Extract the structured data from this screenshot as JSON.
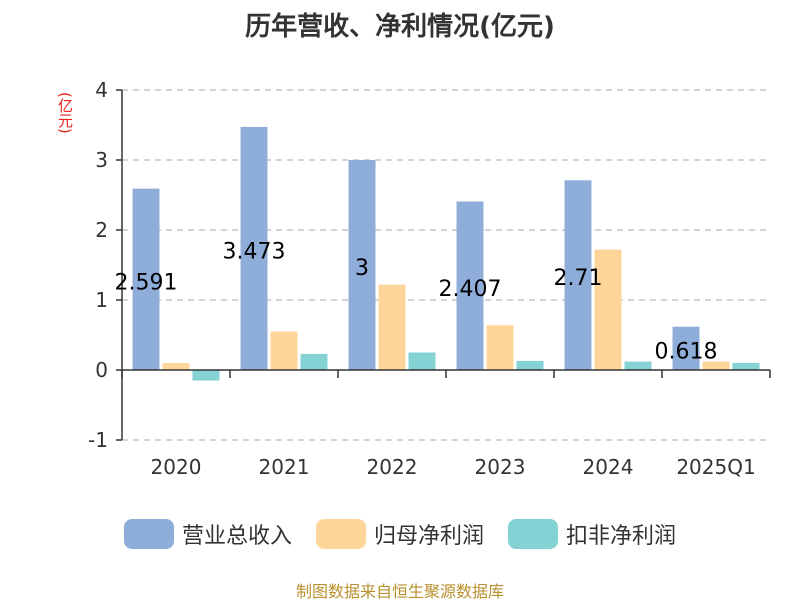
{
  "title": "历年营收、净利情况(亿元)",
  "unit_label": "(亿元)",
  "source": "制图数据来自恒生聚源数据库",
  "colors": {
    "revenue": "#8fadd9",
    "net_profit": "#ffd699",
    "non_recurring_profit": "#85d2d5",
    "grid": "#bbbbbb",
    "axis": "#333333",
    "unit": "#e8231c",
    "source": "#b8912e"
  },
  "chart_data": {
    "type": "bar",
    "categories": [
      "2020",
      "2021",
      "2022",
      "2023",
      "2024",
      "2025Q1"
    ],
    "series": [
      {
        "name": "营业总收入",
        "values": [
          2.591,
          3.473,
          3.0,
          2.407,
          2.71,
          0.618
        ]
      },
      {
        "name": "归母净利润",
        "values": [
          0.1,
          0.55,
          1.22,
          0.64,
          1.72,
          0.12
        ]
      },
      {
        "name": "扣非净利润",
        "values": [
          -0.15,
          0.23,
          0.25,
          0.13,
          0.12,
          0.1
        ]
      }
    ],
    "data_labels": [
      "2.591",
      "3.473",
      "3",
      "2.407",
      "2.71",
      "0.618"
    ],
    "yticks": [
      "4",
      "3",
      "2",
      "1",
      "0",
      "-1"
    ],
    "ylim": [
      -1,
      4
    ],
    "grid": true,
    "legend_position": "bottom"
  }
}
